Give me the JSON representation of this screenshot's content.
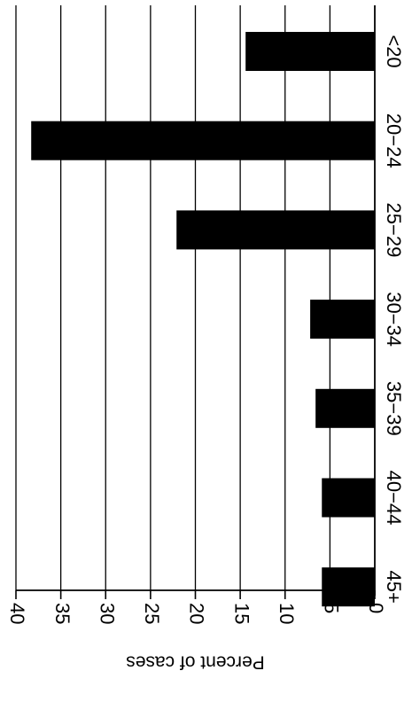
{
  "chart_data": {
    "type": "bar",
    "orientation": "horizontal",
    "rotated": true,
    "categories": [
      "<20",
      "20−24",
      "25−29",
      "30−34",
      "35−39",
      "40−44",
      "45+"
    ],
    "values": [
      14.4,
      38.3,
      22.1,
      7.2,
      6.6,
      5.9,
      5.9
    ],
    "xlabel": "Percent of cases",
    "ylabel": "",
    "xlim": [
      0,
      40
    ],
    "ticks": [
      0,
      5,
      10,
      15,
      20,
      25,
      30,
      35,
      40
    ],
    "tick_labels": [
      "0",
      "5",
      "10",
      "15",
      "20",
      "25",
      "30",
      "35",
      "40"
    ],
    "grid": true,
    "bar_color": "#000000",
    "grid_color": "#000000"
  }
}
